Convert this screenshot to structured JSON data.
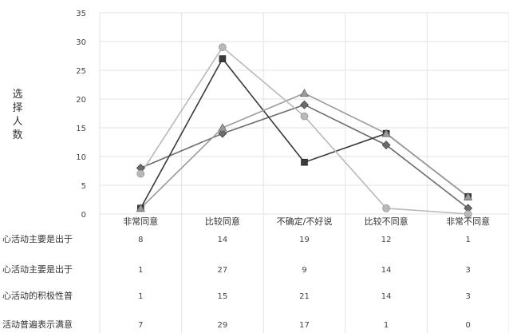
{
  "chart_data": {
    "type": "line",
    "ylabel": "选择人数",
    "ylim": [
      0,
      35
    ],
    "yticks": [
      0,
      5,
      10,
      15,
      20,
      25,
      30,
      35
    ],
    "categories": [
      "非常同意",
      "比较同意",
      "不确定/不好说",
      "比较不同意",
      "非常不同意"
    ],
    "series": [
      {
        "name": "心活动主要是出于",
        "values": [
          8,
          14,
          19,
          12,
          1
        ],
        "color": "#6b6b6b",
        "marker": "diamond"
      },
      {
        "name": "心活动主要是出于",
        "values": [
          1,
          27,
          9,
          14,
          3
        ],
        "color": "#3a3a3a",
        "marker": "square"
      },
      {
        "name": "心活动的积极性普",
        "values": [
          1,
          15,
          21,
          14,
          3
        ],
        "color": "#9a9a9a",
        "marker": "triangle"
      },
      {
        "name": "活动普遍表示满意",
        "values": [
          7,
          29,
          17,
          1,
          0
        ],
        "color": "#b9b9b9",
        "marker": "circle"
      }
    ],
    "grid": true,
    "legend": "data-table"
  }
}
